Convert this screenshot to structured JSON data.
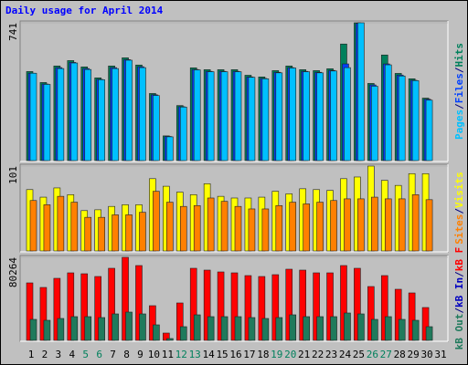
{
  "title": "Daily usage for April 2014",
  "separator": "/",
  "weekend_indices": [
    4,
    5,
    11,
    12,
    18,
    19,
    25,
    26
  ],
  "weekend_color": "#00805c",
  "chart_data": [
    {
      "type": "bar",
      "ylim": [
        0,
        741
      ],
      "series": [
        {
          "name": "Hits",
          "color": "#00805c",
          "values": [
            479,
            420,
            509,
            538,
            504,
            445,
            509,
            553,
            514,
            361,
            133,
            296,
            499,
            489,
            489,
            489,
            459,
            450,
            484,
            509,
            489,
            484,
            494,
            627,
            741,
            415,
            568,
            469,
            440,
            336,
            null
          ]
        },
        {
          "name": "Files",
          "color": "#0040ff",
          "values": [
            470,
            412,
            500,
            528,
            495,
            437,
            500,
            543,
            505,
            354,
            130,
            290,
            490,
            480,
            480,
            480,
            450,
            442,
            475,
            500,
            480,
            475,
            485,
            520,
            738,
            407,
            520,
            460,
            432,
            330,
            null
          ]
        },
        {
          "name": "Pages",
          "color": "#00c0ff",
          "values": [
            470,
            410,
            495,
            525,
            490,
            435,
            495,
            540,
            500,
            350,
            128,
            288,
            488,
            478,
            478,
            478,
            448,
            440,
            472,
            498,
            478,
            472,
            482,
            500,
            741,
            400,
            515,
            455,
            430,
            325,
            null
          ]
        }
      ]
    },
    {
      "type": "bar",
      "ylim": [
        0,
        101
      ],
      "series": [
        {
          "name": "Visits",
          "color": "#ffff00",
          "values": [
            73,
            64,
            75,
            67,
            48,
            49,
            53,
            55,
            55,
            86,
            77,
            70,
            67,
            80,
            65,
            63,
            63,
            64,
            71,
            68,
            74,
            73,
            72,
            86,
            88,
            101,
            84,
            78,
            92,
            92,
            null
          ]
        },
        {
          "name": "Sites",
          "color": "#ff8000",
          "values": [
            60,
            55,
            65,
            58,
            40,
            40,
            43,
            43,
            46,
            71,
            58,
            53,
            54,
            63,
            59,
            53,
            50,
            50,
            54,
            58,
            56,
            58,
            60,
            62,
            62,
            64,
            62,
            62,
            67,
            61,
            null
          ]
        }
      ]
    },
    {
      "type": "bar",
      "ylim": [
        0,
        80264
      ],
      "categories": [
        "1",
        "2",
        "3",
        "4",
        "5",
        "6",
        "7",
        "8",
        "9",
        "10",
        "11",
        "12",
        "13",
        "14",
        "15",
        "16",
        "17",
        "18",
        "19",
        "20",
        "21",
        "22",
        "23",
        "24",
        "25",
        "26",
        "27",
        "28",
        "29",
        "30",
        "31"
      ],
      "series": [
        {
          "name": "kB F",
          "color": "#ff0000",
          "values": [
            55566,
            51156,
            59976,
            65268,
            64386,
            61740,
            69678,
            80264,
            72324,
            33516,
            7056,
            36162,
            69678,
            67914,
            66150,
            65268,
            62622,
            61740,
            63504,
            68796,
            67914,
            65268,
            65268,
            72324,
            69678,
            52038,
            62622,
            49392,
            45864,
            31752,
            null
          ]
        },
        {
          "name": "kB In",
          "color": "#0000c0",
          "values": [
            null,
            null,
            null,
            null,
            null,
            null,
            null,
            null,
            null,
            null,
            null,
            null,
            null,
            null,
            null,
            null,
            null,
            null,
            null,
            null,
            null,
            null,
            null,
            null,
            null,
            null,
            null,
            null,
            null,
            null,
            null
          ]
        },
        {
          "name": "kB Out",
          "color": "#1f7a5c",
          "values": [
            20286,
            19404,
            21168,
            22932,
            22932,
            22050,
            25578,
            27342,
            25578,
            14994,
            1764,
            13230,
            24696,
            22932,
            22932,
            22932,
            22050,
            21168,
            22050,
            24696,
            22932,
            22932,
            22932,
            26460,
            25578,
            20286,
            22932,
            20286,
            19404,
            13230,
            null
          ]
        }
      ]
    }
  ]
}
